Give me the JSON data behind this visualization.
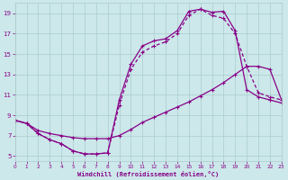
{
  "xlabel": "Windchill (Refroidissement éolien,°C)",
  "bg_color": "#cce8ea",
  "grid_color": "#aacccc",
  "line_color": "#880088",
  "xlim": [
    0,
    23
  ],
  "ylim": [
    4.5,
    20.0
  ],
  "xticks": [
    0,
    1,
    2,
    3,
    4,
    5,
    6,
    7,
    8,
    9,
    10,
    11,
    12,
    13,
    14,
    15,
    16,
    17,
    18,
    19,
    20,
    21,
    22,
    23
  ],
  "yticks": [
    5,
    7,
    9,
    11,
    13,
    15,
    17,
    19
  ],
  "curve1_x": [
    0,
    1,
    2,
    3,
    4,
    5,
    6,
    7,
    8,
    9,
    10,
    11,
    12,
    13,
    14,
    15,
    16,
    17,
    18,
    19,
    20,
    21,
    22,
    23
  ],
  "curve1_y": [
    8.5,
    8.2,
    7.2,
    6.6,
    6.2,
    5.5,
    5.2,
    5.2,
    5.3,
    10.5,
    14.0,
    15.8,
    16.3,
    16.5,
    17.3,
    19.2,
    19.4,
    19.1,
    19.2,
    17.3,
    11.5,
    10.8,
    10.5,
    10.2
  ],
  "curve2_x": [
    0,
    1,
    2,
    3,
    4,
    5,
    6,
    7,
    8,
    9,
    10,
    11,
    12,
    13,
    14,
    15,
    16,
    17,
    18,
    19,
    20,
    21,
    22,
    23
  ],
  "curve2_y": [
    8.5,
    8.2,
    7.5,
    7.2,
    7.0,
    6.8,
    6.7,
    6.7,
    6.7,
    7.0,
    7.6,
    8.3,
    8.8,
    9.3,
    9.8,
    10.3,
    10.9,
    11.5,
    12.2,
    13.0,
    13.8,
    13.8,
    13.5,
    10.5
  ],
  "curve3_x": [
    0,
    1,
    2,
    3,
    4,
    5,
    6,
    7,
    8,
    9,
    10,
    11,
    12,
    13,
    14,
    15,
    16,
    17,
    18,
    19,
    20,
    21,
    22,
    23
  ],
  "curve3_y": [
    8.5,
    8.2,
    7.2,
    6.6,
    6.2,
    5.5,
    5.2,
    5.2,
    5.3,
    10.0,
    13.5,
    15.2,
    15.8,
    16.2,
    17.0,
    18.8,
    19.4,
    18.8,
    18.5,
    17.0,
    13.8,
    11.2,
    10.8,
    10.5
  ]
}
